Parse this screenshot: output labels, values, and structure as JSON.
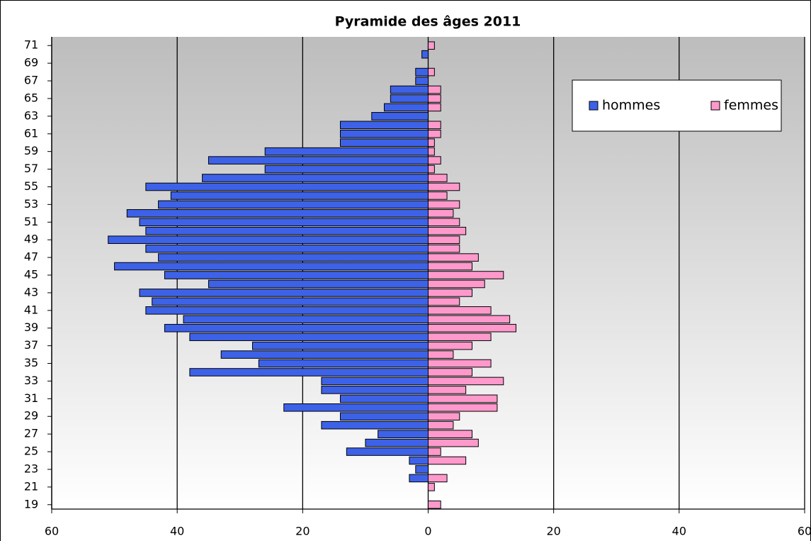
{
  "chart_data": {
    "type": "pyramid",
    "title": "Pyramide des âges 2011",
    "categories": [
      "19",
      null,
      "21",
      null,
      "23",
      null,
      "25",
      null,
      "27",
      null,
      "29",
      null,
      "31",
      null,
      "33",
      null,
      "35",
      null,
      "37",
      null,
      "39",
      null,
      "41",
      null,
      "43",
      null,
      "45",
      null,
      "47",
      null,
      "49",
      null,
      "51",
      null,
      "53",
      null,
      "55",
      null,
      "57",
      null,
      "59",
      null,
      "61",
      null,
      "63",
      null,
      "65",
      null,
      "67",
      null,
      "69",
      null,
      "71"
    ],
    "series": [
      {
        "name": "hommes",
        "color": "#3d62e8",
        "values": [
          0,
          0,
          0,
          -3,
          -2,
          -3,
          -13,
          -10,
          -8,
          -17,
          -14,
          -23,
          -14,
          -17,
          -17,
          -38,
          -27,
          -33,
          -28,
          -38,
          -42,
          -39,
          -45,
          -44,
          -46,
          -35,
          -42,
          -50,
          -43,
          -45,
          -51,
          -45,
          -46,
          -48,
          -43,
          -41,
          -45,
          -36,
          -26,
          -35,
          -26,
          -14,
          -14,
          -14,
          -9,
          -7,
          -6,
          -6,
          -2,
          -2,
          0,
          -1,
          0
        ]
      },
      {
        "name": "femmes",
        "color": "#ff99cc",
        "values": [
          2,
          0,
          1,
          3,
          0,
          6,
          2,
          8,
          7,
          4,
          5,
          11,
          11,
          6,
          12,
          7,
          10,
          4,
          7,
          10,
          14,
          13,
          10,
          5,
          7,
          9,
          12,
          7,
          8,
          5,
          5,
          6,
          5,
          4,
          5,
          3,
          5,
          3,
          1,
          2,
          1,
          1,
          2,
          2,
          0,
          2,
          2,
          2,
          0,
          1,
          0,
          0,
          1
        ]
      }
    ],
    "xlim": [
      -60,
      60
    ],
    "xticks": [
      {
        "value": -60,
        "label": "60"
      },
      {
        "value": -40,
        "label": "40"
      },
      {
        "value": -20,
        "label": "20"
      },
      0,
      20,
      40,
      60
    ],
    "grid": true,
    "legend": "top-right"
  }
}
